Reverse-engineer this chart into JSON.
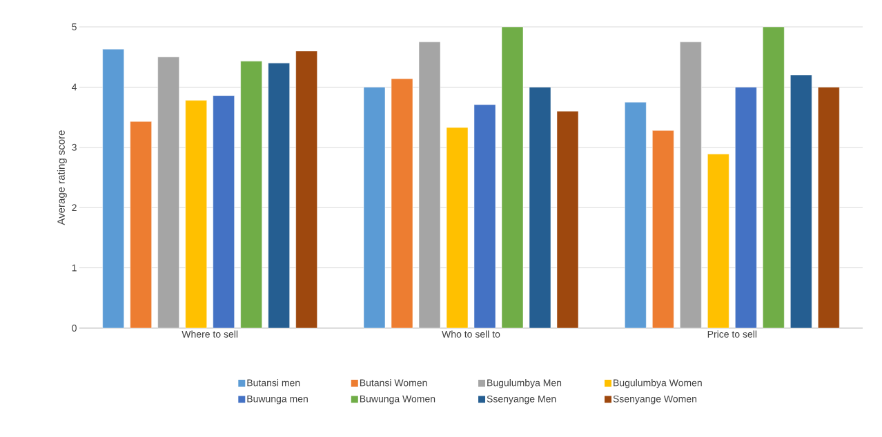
{
  "chart_data": {
    "type": "bar",
    "ylabel": "Average rating score",
    "categories": [
      "Where to sell",
      "Who to sell to",
      "Price to sell"
    ],
    "series": [
      {
        "name": "Butansi men",
        "color": "#5b9bd5",
        "values": [
          4.63,
          4.0,
          3.75
        ]
      },
      {
        "name": "Butansi Women",
        "color": "#ed7d31",
        "values": [
          3.43,
          4.14,
          3.28
        ]
      },
      {
        "name": "Bugulumbya Men",
        "color": "#a5a5a5",
        "values": [
          4.5,
          4.75,
          4.75
        ]
      },
      {
        "name": "Bugulumbya Women",
        "color": "#ffc000",
        "values": [
          3.78,
          3.33,
          2.89
        ]
      },
      {
        "name": "Buwunga men",
        "color": "#4472c4",
        "values": [
          3.86,
          3.71,
          4.0
        ]
      },
      {
        "name": "Buwunga Women",
        "color": "#70ad47",
        "values": [
          4.43,
          5.0,
          5.0
        ]
      },
      {
        "name": "Ssenyange Men",
        "color": "#255e91",
        "values": [
          4.4,
          4.0,
          4.2
        ]
      },
      {
        "name": "Ssenyange Women",
        "color": "#9e480e",
        "values": [
          4.6,
          3.6,
          4.0
        ]
      }
    ],
    "ylim": [
      0,
      5
    ],
    "yticks": [
      0,
      1,
      2,
      3,
      4,
      5
    ],
    "grid": "y",
    "legend": "bottom"
  }
}
